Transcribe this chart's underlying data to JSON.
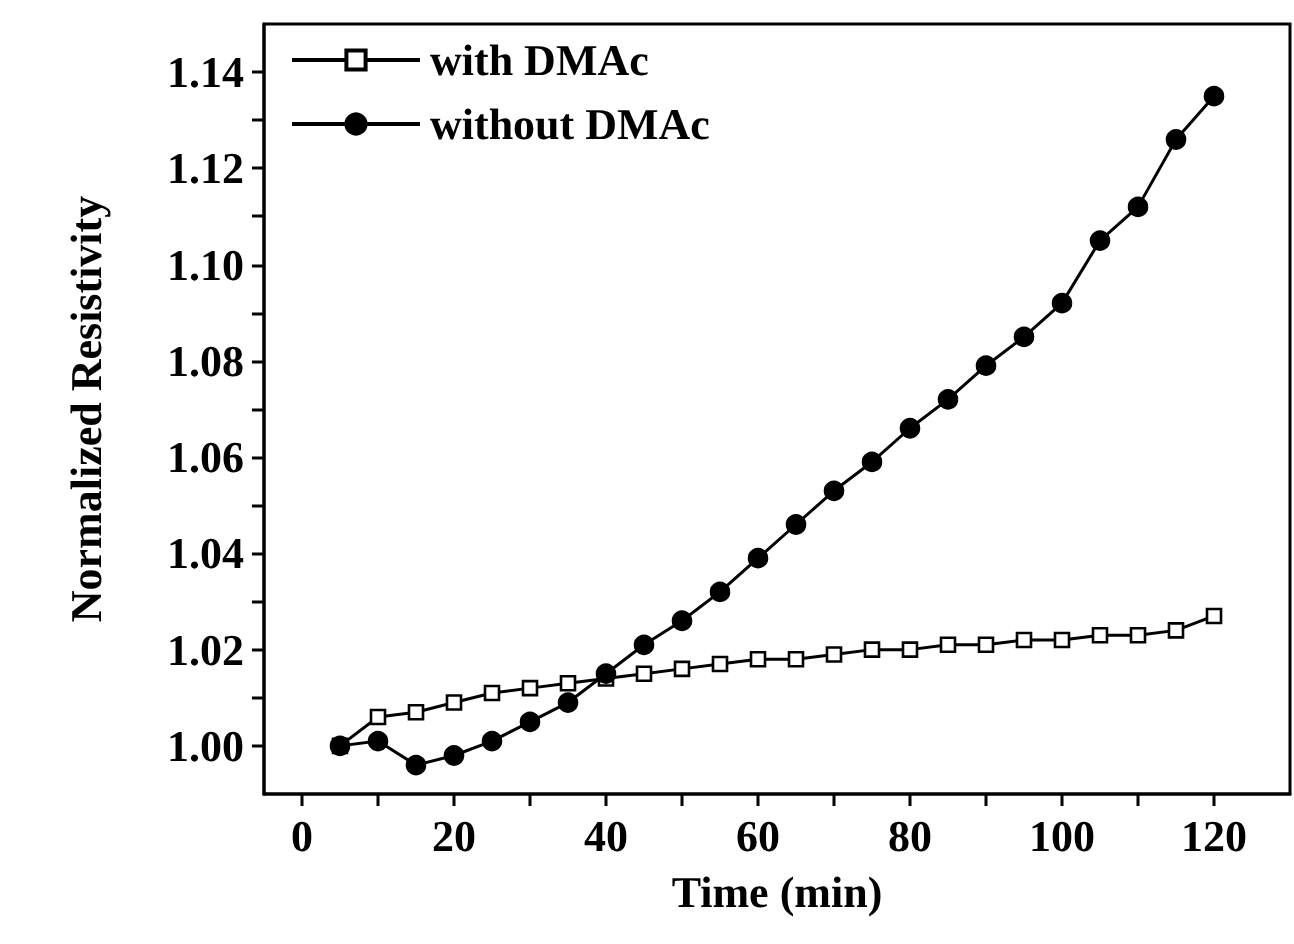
{
  "chart_data": {
    "type": "line",
    "xlabel": "Time (min)",
    "ylabel": "Normalized Resistivity",
    "x": [
      5,
      10,
      15,
      20,
      25,
      30,
      35,
      40,
      45,
      50,
      55,
      60,
      65,
      70,
      75,
      80,
      85,
      90,
      95,
      100,
      105,
      110,
      115,
      120
    ],
    "series": [
      {
        "name": "with DMAc",
        "color": "#000000",
        "marker": "square",
        "values": [
          1.0,
          1.006,
          1.007,
          1.009,
          1.011,
          1.012,
          1.013,
          1.014,
          1.015,
          1.016,
          1.017,
          1.018,
          1.018,
          1.019,
          1.02,
          1.02,
          1.021,
          1.021,
          1.022,
          1.022,
          1.023,
          1.023,
          1.024,
          1.027
        ]
      },
      {
        "name": "without DMAc",
        "color": "#000000",
        "marker": "circle",
        "values": [
          1.0,
          1.001,
          0.996,
          0.998,
          1.001,
          1.005,
          1.009,
          1.015,
          1.021,
          1.026,
          1.032,
          1.039,
          1.046,
          1.053,
          1.059,
          1.066,
          1.072,
          1.079,
          1.085,
          1.092,
          1.105,
          1.112,
          1.126,
          1.135
        ]
      }
    ],
    "xlim": [
      -5,
      130
    ],
    "xticks": [
      0,
      {
        "value": 10,
        "label": null
      },
      20,
      {
        "value": 30,
        "label": null
      },
      40,
      {
        "value": 50,
        "label": null
      },
      60,
      {
        "value": 70,
        "label": null
      },
      80,
      {
        "value": 90,
        "label": null
      },
      100,
      {
        "value": 110,
        "label": null
      },
      120
    ],
    "ylim": [
      0.99,
      1.15
    ],
    "yticks": [
      {
        "value": 1,
        "label": "1.00"
      },
      {
        "value": 1.01,
        "label": null
      },
      1.02,
      {
        "value": 1.03,
        "label": null
      },
      1.04,
      {
        "value": 1.05,
        "label": null
      },
      1.06,
      {
        "value": 1.07,
        "label": null
      },
      1.08,
      {
        "value": 1.09,
        "label": null
      },
      {
        "value": 1.1,
        "label": "1.10"
      },
      {
        "value": 1.11,
        "label": null
      },
      1.12,
      {
        "value": 1.13,
        "label": null
      },
      1.14
    ],
    "legend": "top left",
    "grid": false,
    "line_style": "solid"
  }
}
